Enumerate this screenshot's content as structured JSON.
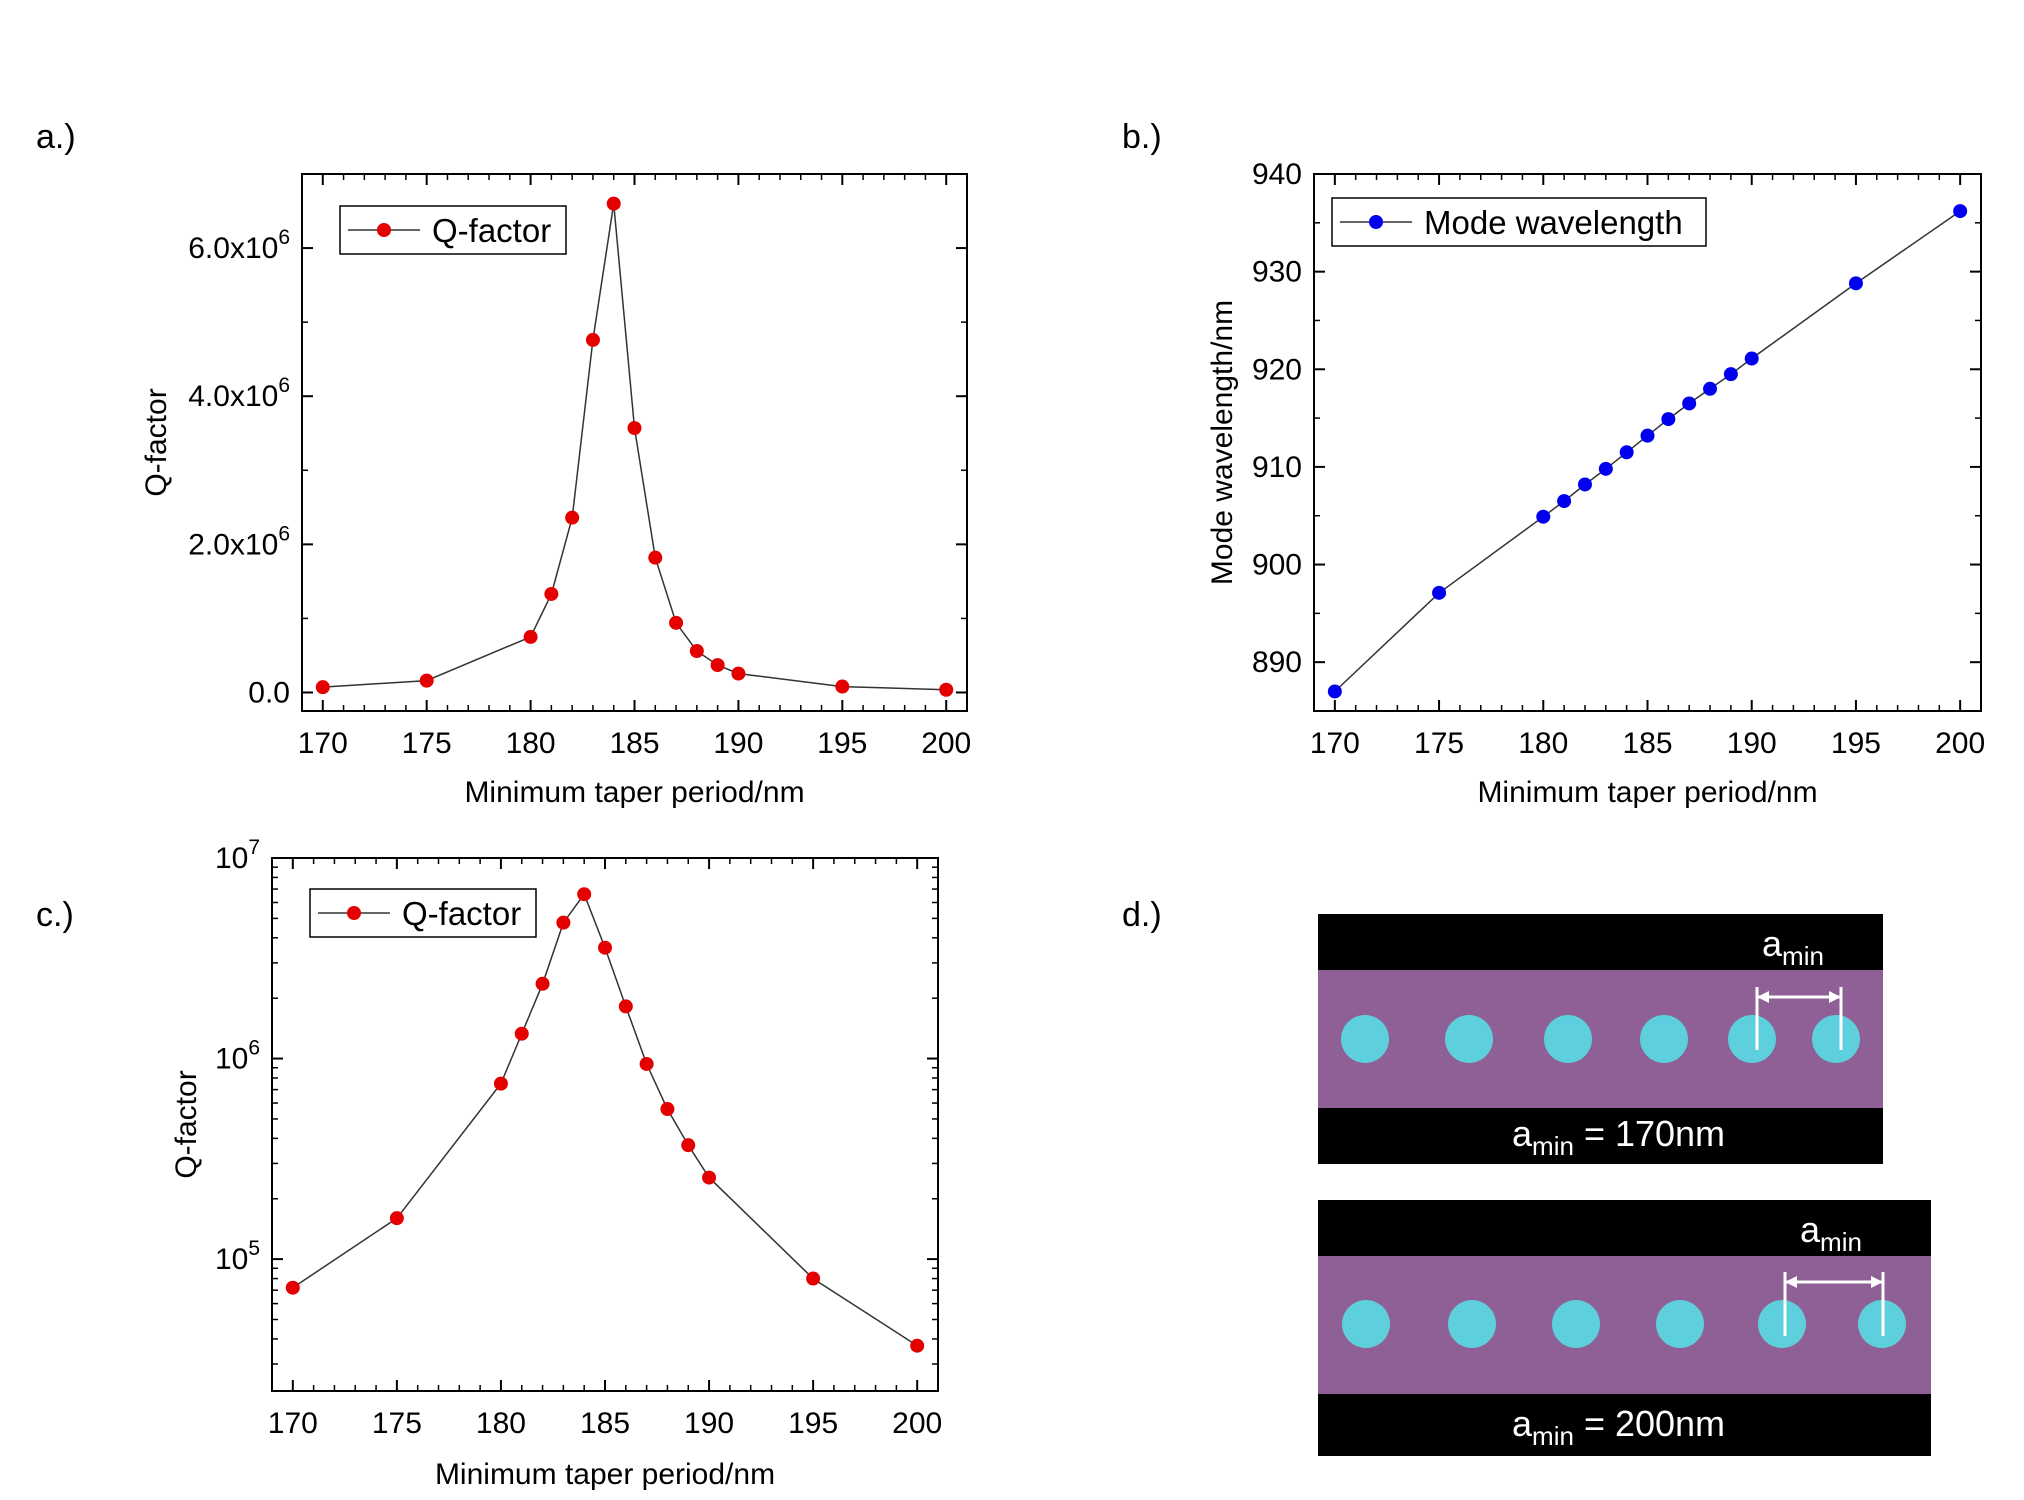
{
  "panel_labels": {
    "a": "a.)",
    "b": "b.)",
    "c": "c.)",
    "d": "d.)"
  },
  "colors": {
    "red_marker": "#e50000",
    "blue_marker": "#0000ee",
    "line": "#333333",
    "waveguide": "#8f6096",
    "hole": "#5ecfdc",
    "bar": "#000000",
    "annotation": "#ffffff"
  },
  "chart_data": [
    {
      "id": "a",
      "type": "line",
      "xlabel": "Minimum taper period/nm",
      "ylabel": "Q-factor",
      "legend": "Q-factor",
      "legend_position": "top-left",
      "xlim": [
        169,
        201
      ],
      "ylim": [
        -250000,
        7000000
      ],
      "yscale": "linear",
      "xticks": [
        170,
        175,
        180,
        185,
        190,
        195,
        200
      ],
      "yticks": [
        0,
        2000000,
        4000000,
        6000000
      ],
      "ytick_labels": [
        {
          "base": "0.0",
          "exp": ""
        },
        {
          "base": "2.0x10",
          "exp": "6"
        },
        {
          "base": "4.0x10",
          "exp": "6"
        },
        {
          "base": "6.0x10",
          "exp": "6"
        }
      ],
      "x": [
        170,
        175,
        180,
        181,
        182,
        183,
        184,
        185,
        186,
        187,
        188,
        189,
        190,
        195,
        200
      ],
      "y": [
        72000,
        160000,
        750000,
        1330000,
        2360000,
        4760000,
        6600000,
        3570000,
        1820000,
        940000,
        560000,
        370000,
        255000,
        80000,
        37000
      ],
      "marker_color": "#e50000"
    },
    {
      "id": "b",
      "type": "line",
      "xlabel": "Minimum taper period/nm",
      "ylabel": "Mode wavelength/nm",
      "legend": "Mode wavelength",
      "legend_position": "top-left",
      "xlim": [
        169,
        201
      ],
      "ylim": [
        885,
        940
      ],
      "yscale": "linear",
      "xticks": [
        170,
        175,
        180,
        185,
        190,
        195,
        200
      ],
      "yticks": [
        890,
        900,
        910,
        920,
        930,
        940
      ],
      "ytick_labels": [
        {
          "base": "890",
          "exp": ""
        },
        {
          "base": "900",
          "exp": ""
        },
        {
          "base": "910",
          "exp": ""
        },
        {
          "base": "920",
          "exp": ""
        },
        {
          "base": "930",
          "exp": ""
        },
        {
          "base": "940",
          "exp": ""
        }
      ],
      "x": [
        170,
        175,
        180,
        181,
        182,
        183,
        184,
        185,
        186,
        187,
        188,
        189,
        190,
        195,
        200
      ],
      "y": [
        887.0,
        897.1,
        904.9,
        906.5,
        908.2,
        909.8,
        911.5,
        913.2,
        914.9,
        916.5,
        918.0,
        919.5,
        921.1,
        928.8,
        936.2
      ],
      "marker_color": "#0000ee"
    },
    {
      "id": "c",
      "type": "line",
      "xlabel": "Minimum taper period/nm",
      "ylabel": "Q-factor",
      "legend": "Q-factor",
      "legend_position": "top-left",
      "xlim": [
        169,
        201
      ],
      "ylim": [
        22000,
        10000000
      ],
      "yscale": "log",
      "xticks": [
        170,
        175,
        180,
        185,
        190,
        195,
        200
      ],
      "yticks": [
        100000,
        1000000,
        10000000
      ],
      "ytick_labels": [
        {
          "base": "10",
          "exp": "5"
        },
        {
          "base": "10",
          "exp": "6"
        },
        {
          "base": "10",
          "exp": "7"
        }
      ],
      "x": [
        170,
        175,
        180,
        181,
        182,
        183,
        184,
        185,
        186,
        187,
        188,
        189,
        190,
        195,
        200
      ],
      "y": [
        72000,
        160000,
        750000,
        1330000,
        2360000,
        4760000,
        6600000,
        3570000,
        1820000,
        940000,
        560000,
        370000,
        255000,
        80000,
        37000
      ],
      "marker_color": "#e50000"
    }
  ],
  "schematic": {
    "top": {
      "label_text": "a",
      "label_sub": "min",
      "caption_text": "a",
      "caption_sub": "min",
      "caption_rest": " = 170nm",
      "period_nm": 170
    },
    "bottom": {
      "label_text": "a",
      "label_sub": "min",
      "caption_text": "a",
      "caption_sub": "min",
      "caption_rest": " = 200nm",
      "period_nm": 200
    }
  }
}
